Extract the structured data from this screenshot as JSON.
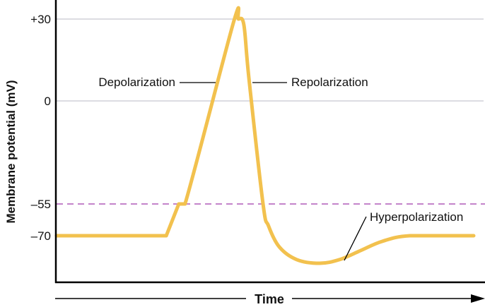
{
  "chart_data": {
    "type": "line",
    "title": "",
    "xlabel": "Time",
    "ylabel": "Membrane potential (mV)",
    "y_ticks": [
      {
        "value": 30,
        "label": "+30"
      },
      {
        "value": 0,
        "label": "0"
      },
      {
        "value": -55,
        "label": "–55"
      },
      {
        "value": -70,
        "label": "–70"
      }
    ],
    "y_scale": "schematic (non-linear, spaced per tick labels)",
    "x_ticks": [],
    "grid": true,
    "gridlines_at": [
      30,
      0
    ],
    "threshold": {
      "value": -55,
      "style": "dashed",
      "color": "#b05ab8"
    },
    "series": [
      {
        "color": "#f2c14e",
        "x": [
          0,
          26.3,
          29.3,
          30.8,
          42.4,
          43.6,
          44.9,
          46.1,
          49.5,
          50.8,
          53.4,
          57.6,
          63.1,
          67.8,
          72.9,
          78,
          84.7,
          100
        ],
        "y": [
          -70,
          -70,
          -55,
          -55,
          28.7,
          30,
          27.9,
          8.5,
          -55,
          -65.3,
          -75.3,
          -81.3,
          -83,
          -81.3,
          -77,
          -72.7,
          -70,
          -70
        ]
      }
    ],
    "annotations": [
      {
        "text": "Depolarization"
      },
      {
        "text": "Repolarization"
      },
      {
        "text": "Hyperpolarization"
      }
    ],
    "colors": {
      "curve": "#f2c14e",
      "gridline": "#d0d0d8",
      "threshold": "#b05ab8",
      "axis": "#000000"
    }
  }
}
